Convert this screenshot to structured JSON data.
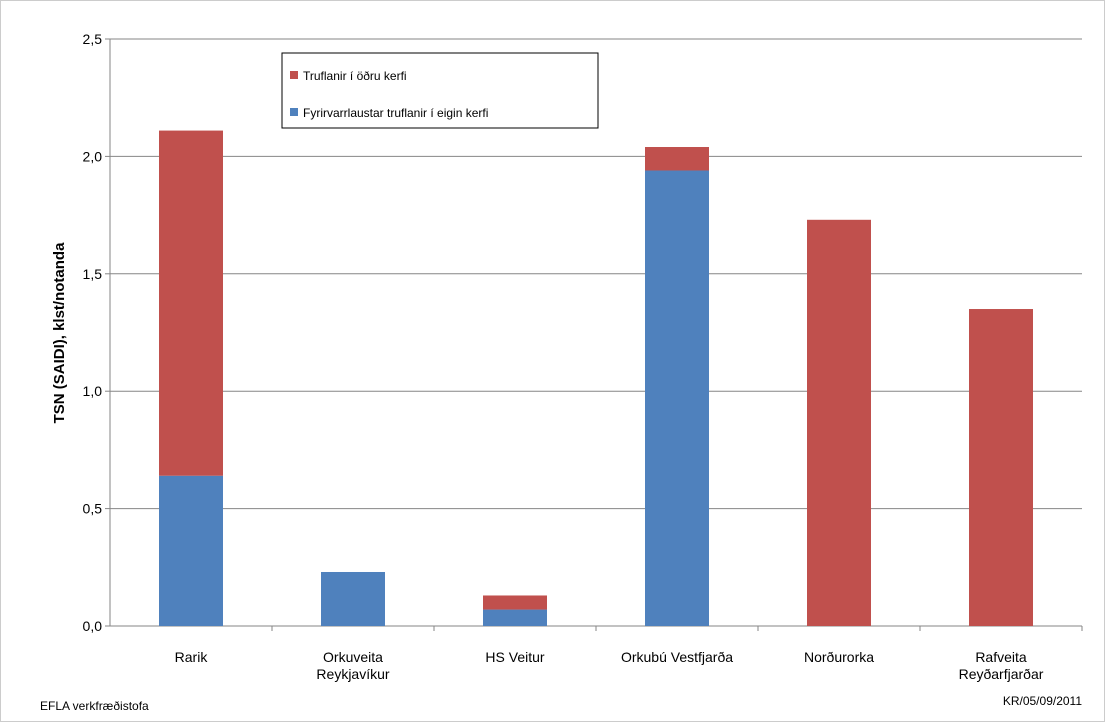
{
  "chart_data": {
    "type": "stacked-bar",
    "ylabel": "TSN (SAIDI), klst/notanda",
    "categories": [
      "Rarik",
      "Orkuveita\nReykjavíkur",
      "HS Veitur",
      "Orkubú Vestfjarða",
      "Norðurorka",
      "Rafveita\nReyðarfjarðar"
    ],
    "series": [
      {
        "name": "Fyrirvarrlaustar truflanir í eigin kerfi",
        "color": "#4f81bd",
        "values": [
          0.64,
          0.23,
          0.07,
          1.94,
          0,
          0
        ]
      },
      {
        "name": "Truflanir í öðru kerfi",
        "color": "#c0504d",
        "values": [
          1.47,
          0,
          0.06,
          0.1,
          1.73,
          1.35
        ]
      }
    ],
    "ylim": [
      0,
      2.5
    ],
    "yticks": [
      {
        "value": 0,
        "label": "0,0"
      },
      {
        "value": 0.5,
        "label": "0,5"
      },
      {
        "value": 1,
        "label": "1,0"
      },
      {
        "value": 1.5,
        "label": "1,5"
      },
      {
        "value": 2,
        "label": "2,0"
      },
      {
        "value": 2.5,
        "label": "2,5"
      }
    ],
    "grid": true,
    "footer_left": "EFLA verkfræðistofa",
    "footer_right": "KR/05/09/2011"
  }
}
